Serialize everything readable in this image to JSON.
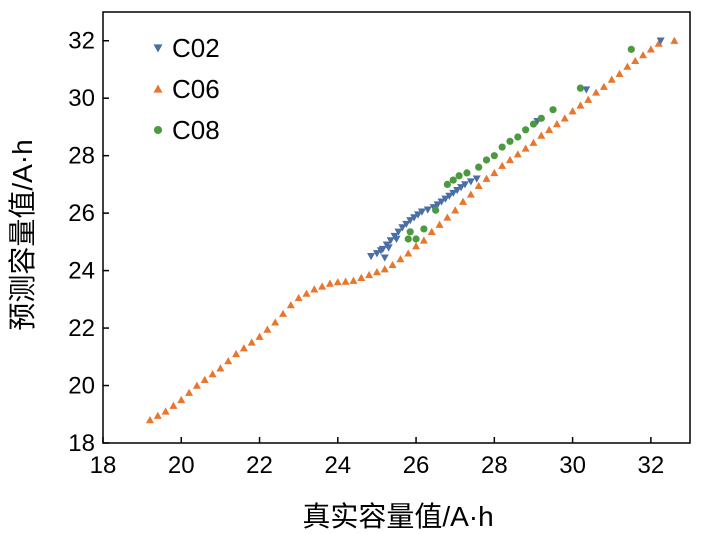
{
  "chart_data": {
    "type": "scatter",
    "title": "",
    "xlabel": "真实容量值/A·h",
    "ylabel": "预测容量值/A·h",
    "xlim": [
      18,
      33
    ],
    "ylim": [
      18,
      33
    ],
    "xticks": [
      18,
      20,
      22,
      24,
      26,
      28,
      30,
      32
    ],
    "yticks": [
      18,
      20,
      22,
      24,
      26,
      28,
      30,
      32
    ],
    "grid": false,
    "legend_position": "top-left",
    "series": [
      {
        "name": "C02",
        "color": "#4a6fa5",
        "marker": "triangle-down",
        "points": [
          [
            24.85,
            24.5
          ],
          [
            25.0,
            24.6
          ],
          [
            25.15,
            24.75
          ],
          [
            25.25,
            24.9
          ],
          [
            25.35,
            25.05
          ],
          [
            25.45,
            25.2
          ],
          [
            25.55,
            25.35
          ],
          [
            25.65,
            25.5
          ],
          [
            25.75,
            25.62
          ],
          [
            25.85,
            25.75
          ],
          [
            25.95,
            25.85
          ],
          [
            26.05,
            25.95
          ],
          [
            26.15,
            26.05
          ],
          [
            26.3,
            26.12
          ],
          [
            26.45,
            26.2
          ],
          [
            26.55,
            26.3
          ],
          [
            26.65,
            26.4
          ],
          [
            26.75,
            26.5
          ],
          [
            26.85,
            26.6
          ],
          [
            26.95,
            26.7
          ],
          [
            27.05,
            26.8
          ],
          [
            27.15,
            26.9
          ],
          [
            27.25,
            27.0
          ],
          [
            27.4,
            27.1
          ],
          [
            27.55,
            27.2
          ],
          [
            25.2,
            24.45
          ],
          [
            25.1,
            24.7
          ],
          [
            25.3,
            24.8
          ],
          [
            25.5,
            25.1
          ],
          [
            29.1,
            29.2
          ],
          [
            30.35,
            30.3
          ],
          [
            32.25,
            32.0
          ]
        ]
      },
      {
        "name": "C06",
        "color": "#e8762d",
        "marker": "triangle-up",
        "points": [
          [
            19.2,
            18.8
          ],
          [
            19.4,
            18.95
          ],
          [
            19.6,
            19.1
          ],
          [
            19.8,
            19.3
          ],
          [
            20.0,
            19.5
          ],
          [
            20.2,
            19.75
          ],
          [
            20.4,
            20.0
          ],
          [
            20.6,
            20.2
          ],
          [
            20.8,
            20.4
          ],
          [
            21.0,
            20.6
          ],
          [
            21.2,
            20.85
          ],
          [
            21.4,
            21.1
          ],
          [
            21.6,
            21.3
          ],
          [
            21.8,
            21.5
          ],
          [
            22.0,
            21.7
          ],
          [
            22.2,
            21.95
          ],
          [
            22.4,
            22.2
          ],
          [
            22.6,
            22.5
          ],
          [
            22.8,
            22.8
          ],
          [
            23.0,
            23.05
          ],
          [
            23.2,
            23.2
          ],
          [
            23.4,
            23.35
          ],
          [
            23.6,
            23.45
          ],
          [
            23.8,
            23.55
          ],
          [
            24.0,
            23.6
          ],
          [
            24.2,
            23.62
          ],
          [
            24.4,
            23.65
          ],
          [
            24.6,
            23.75
          ],
          [
            24.8,
            23.85
          ],
          [
            25.0,
            23.95
          ],
          [
            25.2,
            24.05
          ],
          [
            25.4,
            24.2
          ],
          [
            25.6,
            24.4
          ],
          [
            25.8,
            24.6
          ],
          [
            26.0,
            24.85
          ],
          [
            26.2,
            25.05
          ],
          [
            26.4,
            25.35
          ],
          [
            26.6,
            25.6
          ],
          [
            26.8,
            25.85
          ],
          [
            27.0,
            26.1
          ],
          [
            27.2,
            26.4
          ],
          [
            27.4,
            26.65
          ],
          [
            27.6,
            26.95
          ],
          [
            27.8,
            27.2
          ],
          [
            28.0,
            27.4
          ],
          [
            28.2,
            27.65
          ],
          [
            28.4,
            27.85
          ],
          [
            28.6,
            28.05
          ],
          [
            28.8,
            28.25
          ],
          [
            29.0,
            28.45
          ],
          [
            29.2,
            28.7
          ],
          [
            29.4,
            28.9
          ],
          [
            29.6,
            29.1
          ],
          [
            29.8,
            29.3
          ],
          [
            30.0,
            29.55
          ],
          [
            30.2,
            29.75
          ],
          [
            30.4,
            29.95
          ],
          [
            30.6,
            30.2
          ],
          [
            30.8,
            30.4
          ],
          [
            31.0,
            30.65
          ],
          [
            31.2,
            30.85
          ],
          [
            31.4,
            31.1
          ],
          [
            31.6,
            31.3
          ],
          [
            31.8,
            31.5
          ],
          [
            32.0,
            31.7
          ],
          [
            32.2,
            31.9
          ],
          [
            32.6,
            32.0
          ]
        ]
      },
      {
        "name": "C08",
        "color": "#4c9a3f",
        "marker": "circle",
        "points": [
          [
            25.8,
            25.1
          ],
          [
            26.0,
            25.1
          ],
          [
            25.85,
            25.35
          ],
          [
            26.2,
            25.45
          ],
          [
            26.5,
            26.1
          ],
          [
            26.8,
            27.0
          ],
          [
            26.95,
            27.15
          ],
          [
            27.1,
            27.3
          ],
          [
            27.3,
            27.4
          ],
          [
            27.6,
            27.6
          ],
          [
            27.8,
            27.85
          ],
          [
            28.0,
            28.0
          ],
          [
            28.2,
            28.3
          ],
          [
            28.4,
            28.5
          ],
          [
            28.6,
            28.65
          ],
          [
            28.8,
            28.9
          ],
          [
            29.0,
            29.1
          ],
          [
            29.2,
            29.3
          ],
          [
            29.5,
            29.6
          ],
          [
            30.2,
            30.35
          ],
          [
            31.5,
            31.7
          ]
        ]
      }
    ]
  }
}
